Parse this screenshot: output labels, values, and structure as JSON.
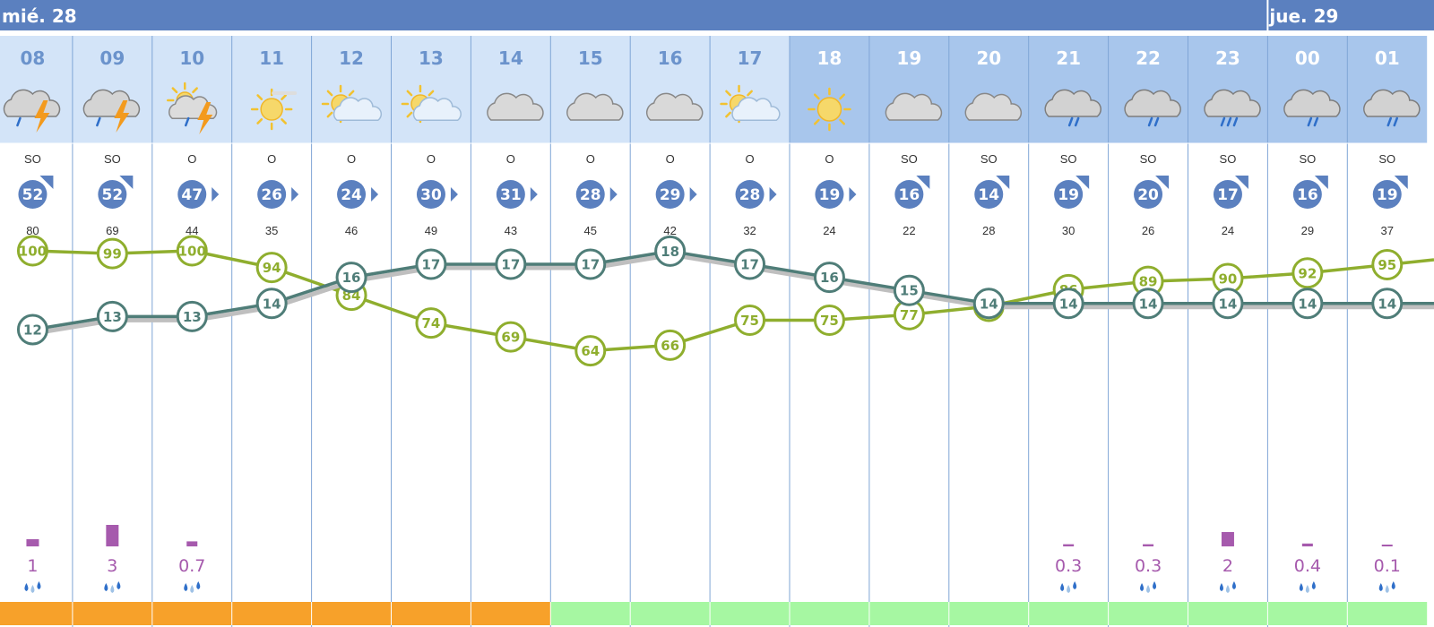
{
  "days": [
    {
      "label": "mié. 28",
      "first_col": 0
    },
    {
      "label": "jue. 29",
      "first_col": 16
    }
  ],
  "colors": {
    "day_bar": "#5b80bf",
    "header_day": "#d3e4f8",
    "header_night": "#a8c6ec",
    "hour_day": "#6b93cc",
    "hour_night": "#ffffff",
    "grid": "#7fa5d6",
    "wind_disc": "#5b80bf",
    "humidity": "#8fae2e",
    "temperature": "#4f7d78",
    "precip": "#a65aad",
    "level_orange": "#f7a12a",
    "level_green": "#a6f7a2"
  },
  "chart_data": {
    "type": "line",
    "title": "",
    "hours": [
      "08",
      "09",
      "10",
      "11",
      "12",
      "13",
      "14",
      "15",
      "16",
      "17",
      "18",
      "19",
      "20",
      "21",
      "22",
      "23",
      "00",
      "01"
    ],
    "night_hours": [
      "18",
      "19",
      "20",
      "21",
      "22",
      "23",
      "00",
      "01"
    ],
    "weather_icons": [
      "storm-rain",
      "storm-rain",
      "sun-cloud-storm",
      "sun-haze",
      "sun-cloud",
      "sun-cloud",
      "cloud",
      "cloud",
      "cloud",
      "sun-cloud",
      "sun",
      "cloud",
      "cloud",
      "cloud-rain",
      "cloud-rain",
      "cloud-rain-heavy",
      "cloud-rain",
      "cloud-rain"
    ],
    "wind_direction": [
      "SO",
      "SO",
      "O",
      "O",
      "O",
      "O",
      "O",
      "O",
      "O",
      "O",
      "O",
      "SO",
      "SO",
      "SO",
      "SO",
      "SO",
      "SO",
      "SO"
    ],
    "wind_speed": [
      52,
      52,
      47,
      26,
      24,
      30,
      31,
      28,
      29,
      28,
      19,
      16,
      14,
      19,
      20,
      17,
      16,
      19
    ],
    "wind_gust": [
      80,
      69,
      44,
      35,
      46,
      49,
      43,
      45,
      42,
      32,
      24,
      22,
      28,
      30,
      26,
      24,
      29,
      37
    ],
    "series": [
      {
        "values": [
          100,
          99,
          100,
          94,
          84,
          74,
          69,
          64,
          66,
          75,
          75,
          77,
          80,
          86,
          89,
          90,
          92,
          95
        ]
      },
      {
        "values": [
          12,
          13,
          13,
          14,
          16,
          17,
          17,
          17,
          18,
          17,
          16,
          15,
          14,
          14,
          14,
          14,
          14,
          14
        ]
      }
    ],
    "precipitation": [
      1,
      3,
      0.7,
      null,
      null,
      null,
      null,
      null,
      null,
      null,
      null,
      null,
      null,
      0.3,
      0.3,
      2,
      0.4,
      0.1
    ],
    "precip_labels": [
      "1",
      "3",
      "0.7",
      "",
      "",
      "",
      "",
      "",
      "",
      "",
      "",
      "",
      "",
      "0.3",
      "0.3",
      "2",
      "0.4",
      "0.1"
    ],
    "warning_level": [
      "orange",
      "orange",
      "orange",
      "orange",
      "orange",
      "orange",
      "orange",
      "green",
      "green",
      "green",
      "green",
      "green",
      "green",
      "green",
      "green",
      "green",
      "green",
      "green"
    ]
  }
}
